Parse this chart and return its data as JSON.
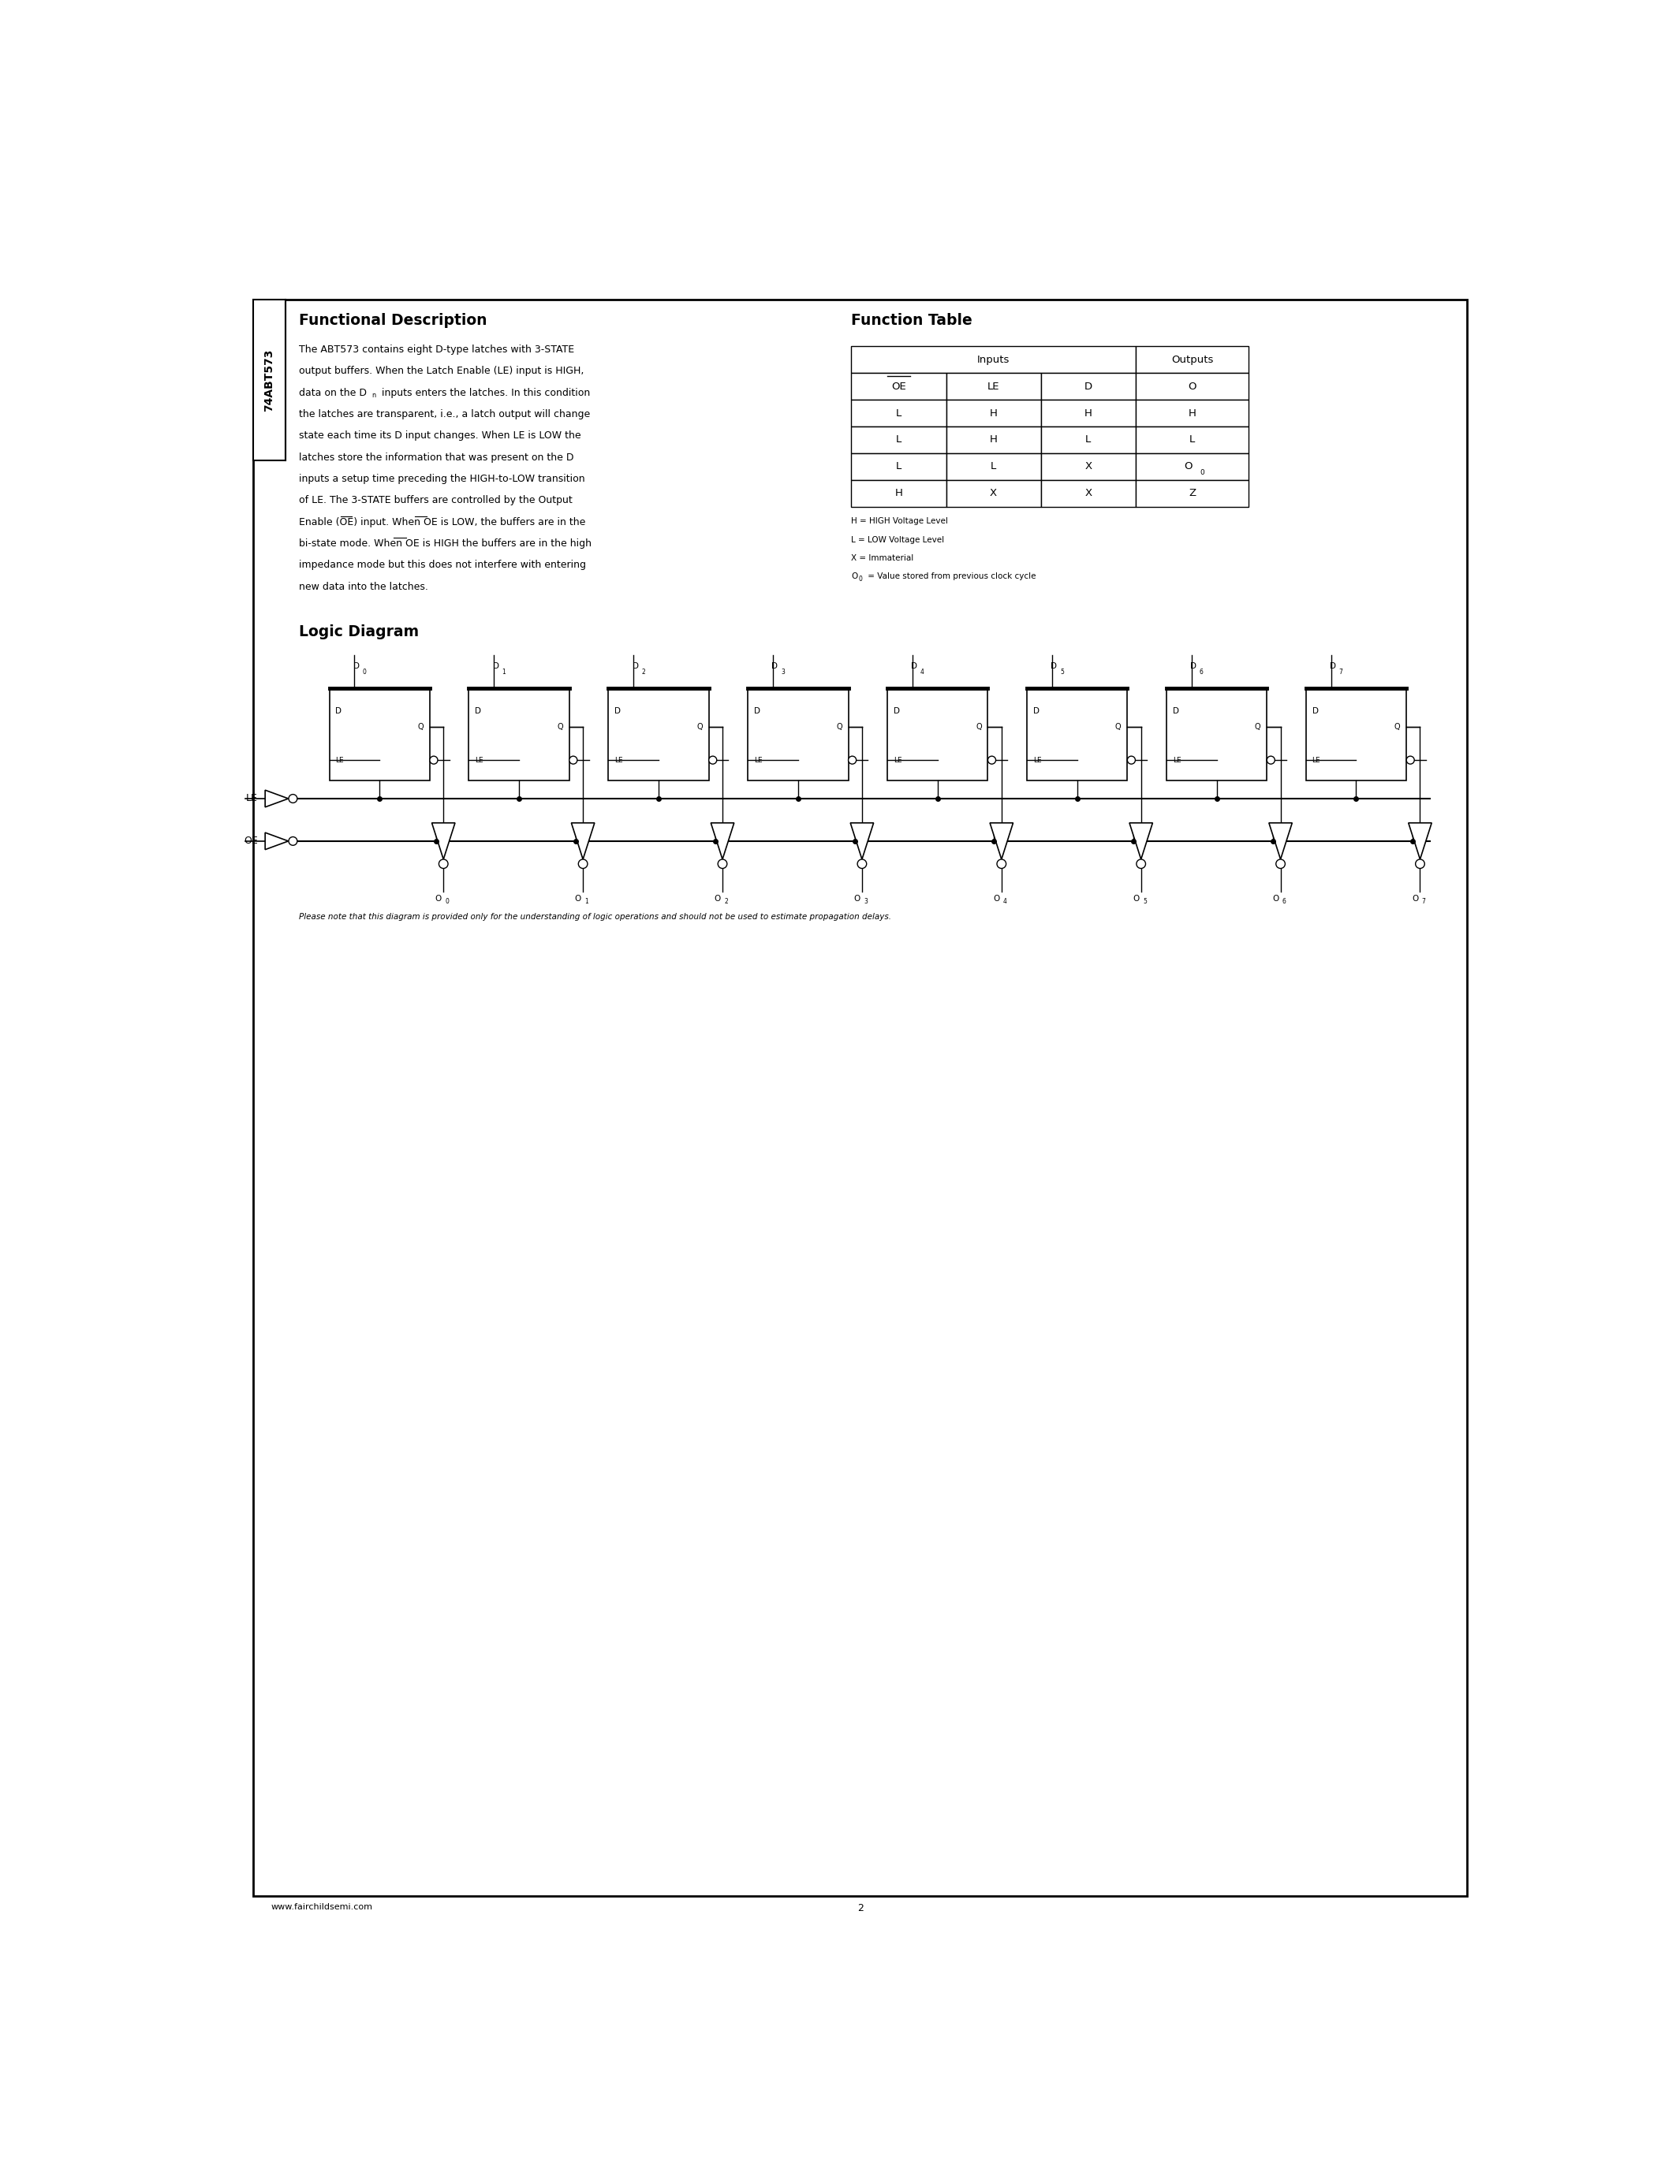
{
  "page_bg": "#ffffff",
  "title_part": "74ABT573",
  "section1_title": "Functional Description",
  "section1_body_lines": [
    "The ABT573 contains eight D-type latches with 3-STATE",
    "output buffers. When the Latch Enable (LE) input is HIGH,",
    "data on the Dn inputs enters the latches. In this condition",
    "the latches are transparent, i.e., a latch output will change",
    "state each time its D input changes. When LE is LOW the",
    "latches store the information that was present on the D",
    "inputs a setup time preceding the HIGH-to-LOW transition",
    "of LE. The 3-STATE buffers are controlled by the Output",
    "Enable (OE) input. When OE is LOW, the buffers are in the",
    "bi-state mode. When OE is HIGH the buffers are in the high",
    "impedance mode but this does not interfere with entering",
    "new data into the latches."
  ],
  "dn_line_idx": 2,
  "oe_low_line_idx": 8,
  "oe_high_line_idx": 9,
  "section2_title": "Function Table",
  "table_notes": [
    "H = HIGH Voltage Level",
    "L = LOW Voltage Level",
    "X = Immaterial",
    "O0 = Value stored from previous clock cycle"
  ],
  "section3_title": "Logic Diagram",
  "footer_url": "www.fairchildsemi.com",
  "footer_page": "2",
  "input_labels": [
    "D0",
    "D1",
    "D2",
    "D3",
    "D4",
    "D5",
    "D6",
    "D7"
  ],
  "output_labels": [
    "O0",
    "O1",
    "O2",
    "O3",
    "O4",
    "O5",
    "O6",
    "O7"
  ]
}
